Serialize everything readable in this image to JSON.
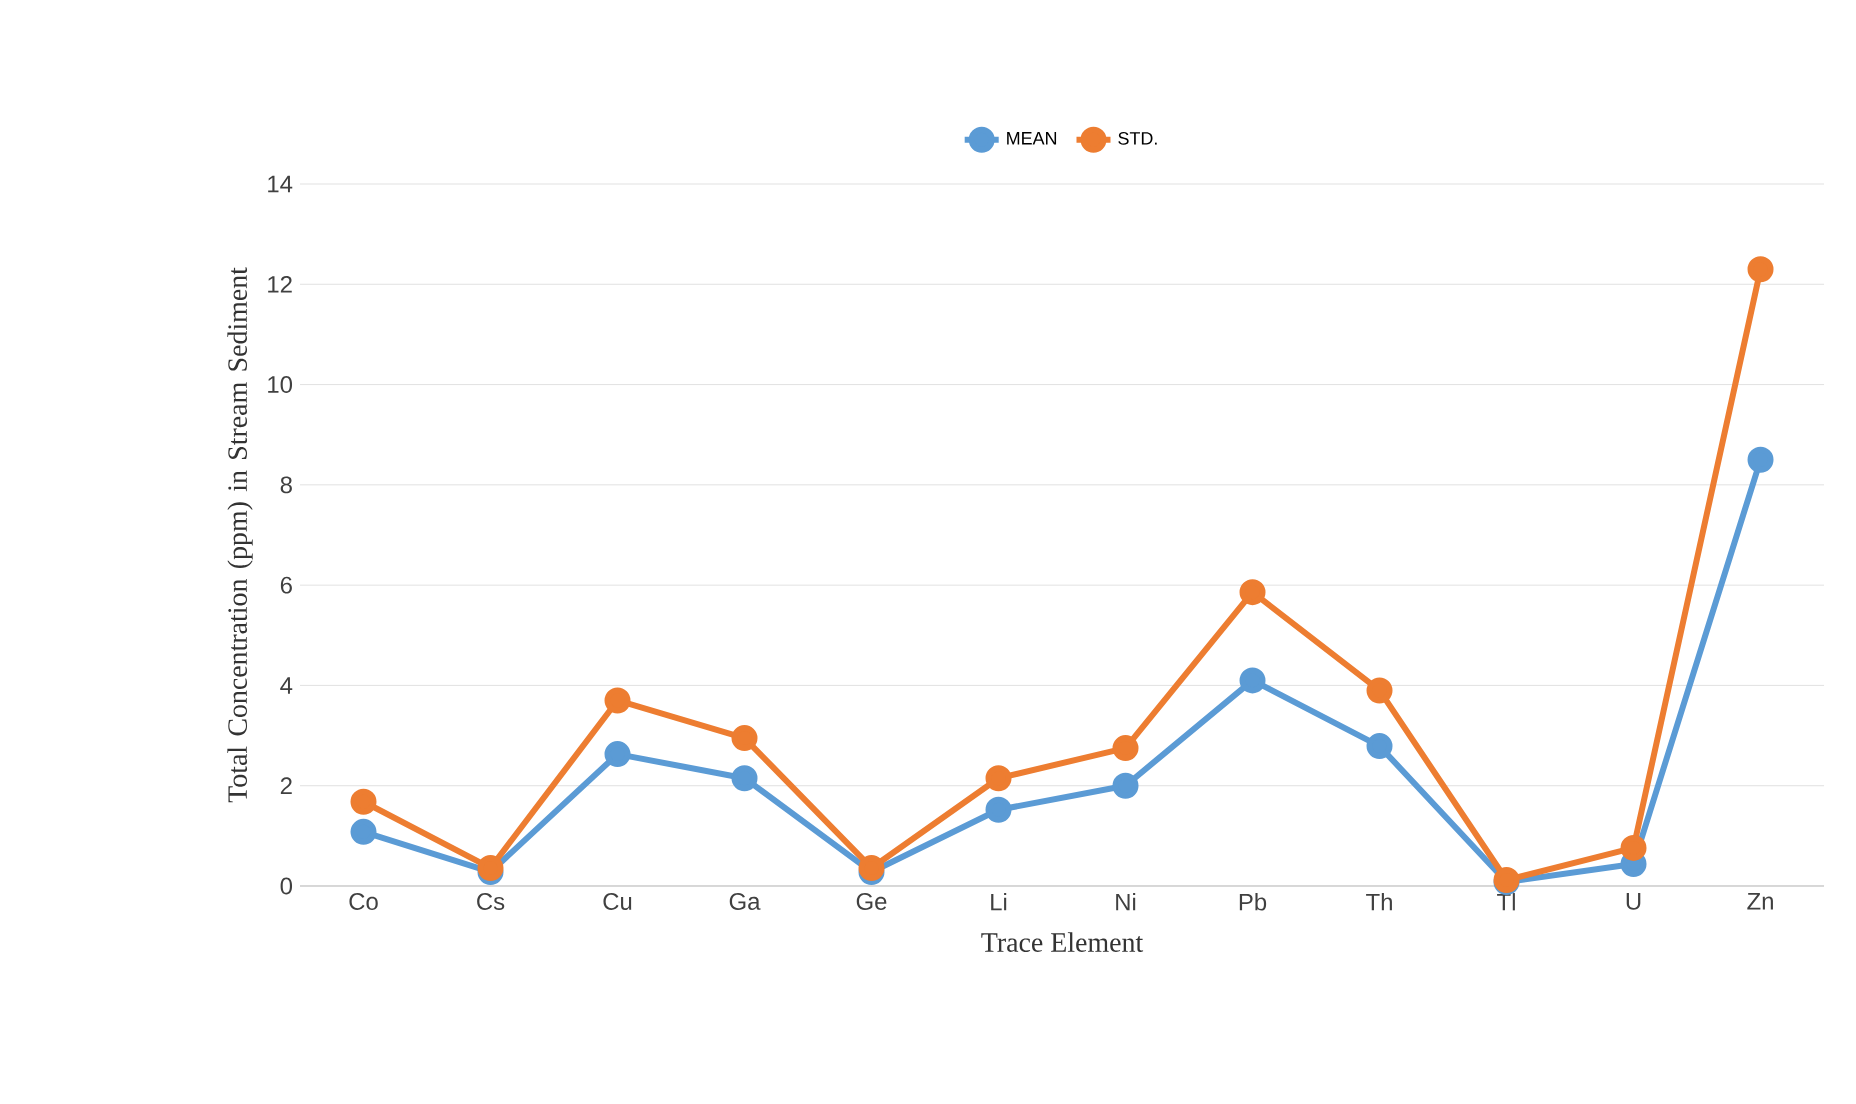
{
  "chart_data": {
    "type": "line",
    "xlabel": "Trace Element",
    "ylabel": "Total Concentration (ppm) in Stream Sediment",
    "categories": [
      "Co",
      "Cs",
      "Cu",
      "Ga",
      "Ge",
      "Li",
      "Ni",
      "Pb",
      "Th",
      "Tl",
      "U",
      "Zn"
    ],
    "series": [
      {
        "name": "MEAN",
        "color": "#5b9bd5",
        "values": [
          1.08,
          0.28,
          2.63,
          2.15,
          0.28,
          1.52,
          2.0,
          4.1,
          2.79,
          0.08,
          0.44,
          8.5
        ]
      },
      {
        "name": "STD.",
        "color": "#ed7d31",
        "values": [
          1.68,
          0.36,
          3.7,
          2.95,
          0.36,
          2.15,
          2.75,
          5.86,
          3.9,
          0.12,
          0.76,
          12.3
        ]
      }
    ],
    "ylim": [
      0,
      14
    ],
    "yticks": [
      0,
      2,
      4,
      6,
      8,
      10,
      12,
      14
    ],
    "grid": "y",
    "legend": "top",
    "marker": "circle",
    "line_style": "solid"
  }
}
